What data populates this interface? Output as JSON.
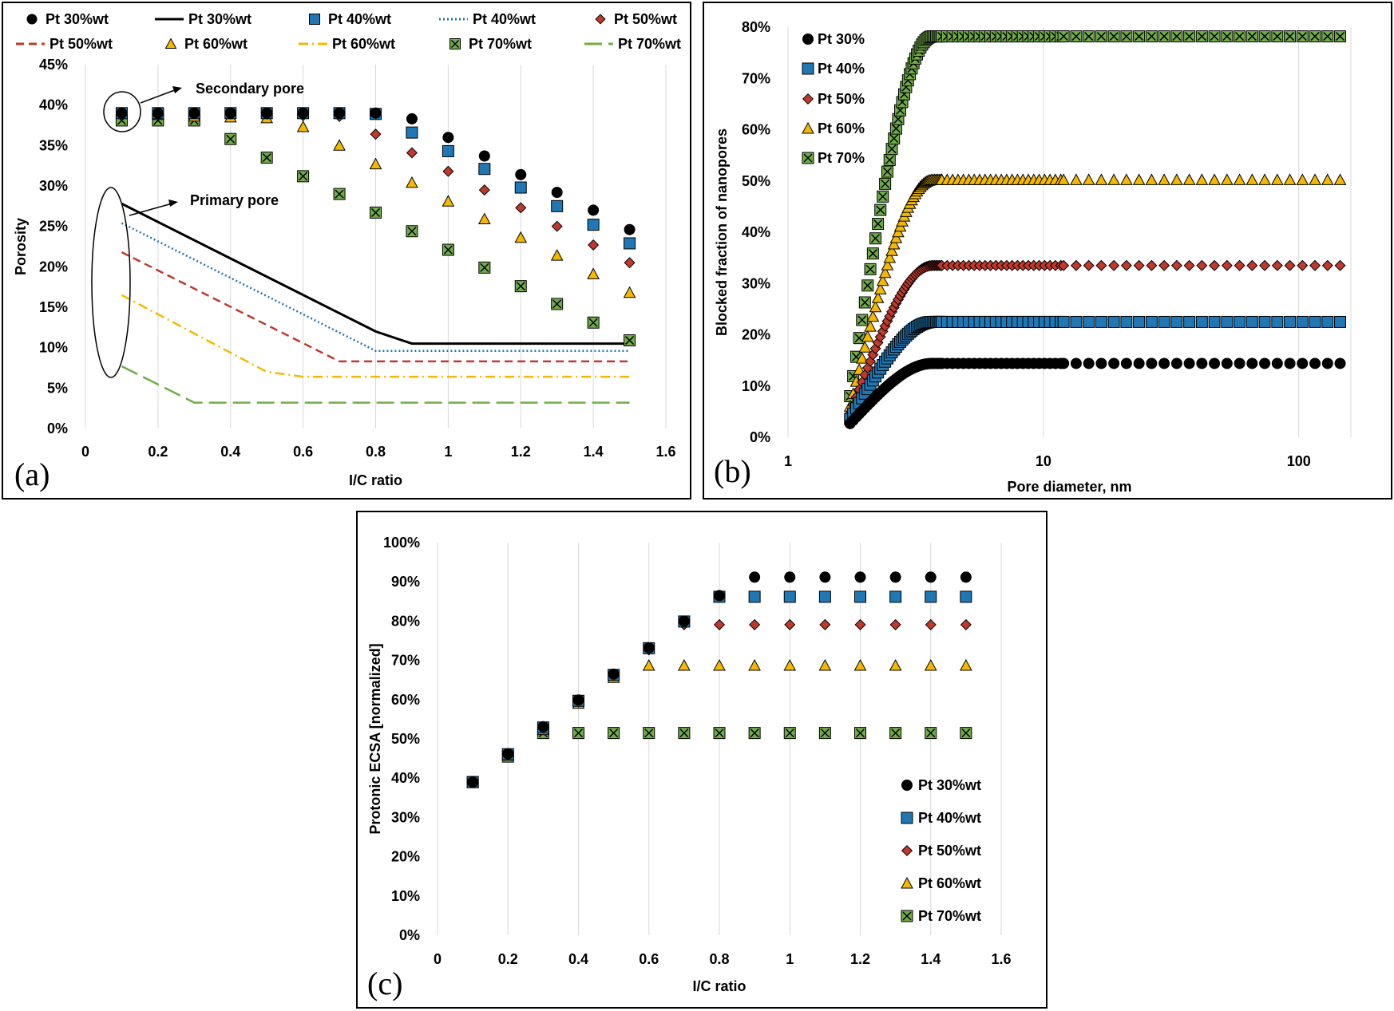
{
  "colors": {
    "pt30": "#000000",
    "pt40": "#1f77b4",
    "pt50": "#c0392b",
    "pt60": "#f5b800",
    "pt70": "#70ad47",
    "grid": "#d9d9d9"
  },
  "panels": [
    {
      "label": "(a)",
      "legend_labels": [
        "Pt 30%wt",
        "Pt 30%wt",
        "Pt 40%wt",
        "Pt 40%wt",
        "Pt 50%wt",
        "Pt 50%wt",
        "Pt 60%wt",
        "Pt 60%wt",
        "Pt 70%wt",
        "Pt 70%wt"
      ],
      "annotations": [
        "Secondary pore",
        "Primary pore"
      ]
    },
    {
      "label": "(b)",
      "legend_labels": [
        "Pt 30%",
        "Pt 40%",
        "Pt 50%",
        "Pt 60%",
        "Pt 70%"
      ]
    },
    {
      "label": "(c)",
      "legend_labels": [
        "Pt 30%wt",
        "Pt 40%wt",
        "Pt 50%wt",
        "Pt 60%wt",
        "Pt 70%wt"
      ]
    }
  ],
  "chart_data": [
    {
      "type": "scatter",
      "panel": "(a)",
      "xlabel": "I/C ratio",
      "ylabel": "Porosity",
      "xlim": [
        0,
        1.6
      ],
      "ylim": [
        0,
        0.45
      ],
      "x_ticks": [
        "0",
        "0.2",
        "0.4",
        "0.6",
        "0.8",
        "1",
        "1.2",
        "1.4",
        "1.6"
      ],
      "y_ticks": [
        "0%",
        "5%",
        "10%",
        "15%",
        "20%",
        "25%",
        "30%",
        "35%",
        "40%",
        "45%"
      ],
      "grid": "vertical",
      "legend_position": "top",
      "annotations": [
        "Secondary pore",
        "Primary pore"
      ],
      "series": [
        {
          "name": "Pt 30%wt",
          "kind": "marker",
          "marker": "circle",
          "color_key": "pt30",
          "x": [
            0.1,
            0.2,
            0.3,
            0.4,
            0.5,
            0.6,
            0.7,
            0.8,
            0.9,
            1.0,
            1.1,
            1.2,
            1.3,
            1.4,
            1.5
          ],
          "y": [
            0.39,
            0.39,
            0.39,
            0.39,
            0.39,
            0.39,
            0.39,
            0.39,
            0.383,
            0.36,
            0.337,
            0.314,
            0.292,
            0.27,
            0.246
          ]
        },
        {
          "name": "Pt 30%wt",
          "kind": "line",
          "dash": "solid",
          "color_key": "pt30",
          "x": [
            0.1,
            0.8,
            0.9,
            1.5
          ],
          "y": [
            0.278,
            0.12,
            0.105,
            0.105
          ]
        },
        {
          "name": "Pt 40%wt",
          "kind": "marker",
          "marker": "square",
          "color_key": "pt40",
          "x": [
            0.1,
            0.2,
            0.3,
            0.4,
            0.5,
            0.6,
            0.7,
            0.8,
            0.9,
            1.0,
            1.1,
            1.2,
            1.3,
            1.4,
            1.5
          ],
          "y": [
            0.39,
            0.39,
            0.39,
            0.39,
            0.39,
            0.39,
            0.39,
            0.389,
            0.366,
            0.343,
            0.321,
            0.298,
            0.275,
            0.252,
            0.229
          ]
        },
        {
          "name": "Pt 40%wt",
          "kind": "line",
          "dash": "dotted",
          "color_key": "pt40",
          "x": [
            0.1,
            0.8,
            1.5
          ],
          "y": [
            0.254,
            0.096,
            0.096
          ]
        },
        {
          "name": "Pt 50%wt",
          "kind": "marker",
          "marker": "diamond",
          "color_key": "pt50",
          "x": [
            0.1,
            0.2,
            0.3,
            0.4,
            0.5,
            0.6,
            0.7,
            0.8,
            0.9,
            1.0,
            1.1,
            1.2,
            1.3,
            1.4,
            1.5
          ],
          "y": [
            0.39,
            0.39,
            0.39,
            0.389,
            0.389,
            0.387,
            0.386,
            0.364,
            0.341,
            0.318,
            0.295,
            0.273,
            0.25,
            0.227,
            0.205
          ]
        },
        {
          "name": "Pt 50%wt",
          "kind": "line",
          "dash": "dashed",
          "color_key": "pt50",
          "x": [
            0.1,
            0.7,
            1.5
          ],
          "y": [
            0.218,
            0.083,
            0.083
          ]
        },
        {
          "name": "Pt 60%wt",
          "kind": "marker",
          "marker": "triangle",
          "color_key": "pt60",
          "x": [
            0.1,
            0.2,
            0.3,
            0.4,
            0.5,
            0.6,
            0.7,
            0.8,
            0.9,
            1.0,
            1.1,
            1.2,
            1.3,
            1.4,
            1.5
          ],
          "y": [
            0.39,
            0.388,
            0.386,
            0.385,
            0.384,
            0.373,
            0.35,
            0.327,
            0.304,
            0.281,
            0.259,
            0.236,
            0.214,
            0.191,
            0.168
          ]
        },
        {
          "name": "Pt 60%wt",
          "kind": "line",
          "dash": "dashdot",
          "color_key": "pt60",
          "x": [
            0.1,
            0.5,
            0.6,
            1.5
          ],
          "y": [
            0.165,
            0.07,
            0.064,
            0.064
          ]
        },
        {
          "name": "Pt 70%wt",
          "kind": "marker",
          "marker": "xsquare",
          "color_key": "pt70",
          "x": [
            0.1,
            0.2,
            0.3,
            0.4,
            0.5,
            0.6,
            0.7,
            0.8,
            0.9,
            1.0,
            1.1,
            1.2,
            1.3,
            1.4,
            1.5
          ],
          "y": [
            0.381,
            0.381,
            0.381,
            0.358,
            0.335,
            0.312,
            0.29,
            0.267,
            0.244,
            0.221,
            0.199,
            0.176,
            0.154,
            0.131,
            0.109
          ]
        },
        {
          "name": "Pt 70%wt",
          "kind": "line",
          "dash": "longdash",
          "color_key": "pt70",
          "x": [
            0.1,
            0.3,
            1.5
          ],
          "y": [
            0.077,
            0.032,
            0.032
          ]
        }
      ]
    },
    {
      "type": "scatter",
      "panel": "(b)",
      "xlabel": "Pore diameter, nm",
      "ylabel": "Blocked fraction of nanopores",
      "xscale": "log",
      "xlim": [
        1,
        160
      ],
      "ylim": [
        0,
        0.8
      ],
      "x_ticks": [
        "1",
        "10",
        "100"
      ],
      "y_ticks": [
        "0%",
        "10%",
        "20%",
        "30%",
        "40%",
        "50%",
        "60%",
        "70%",
        "80%"
      ],
      "grid": "vertical",
      "legend_position": "top-left",
      "curve_model": {
        "d0_nm": 1.7,
        "transition_nm": 3.7,
        "shape": "sigmoid rise then plateau"
      },
      "series": [
        {
          "name": "Pt 30%",
          "marker": "circle",
          "color_key": "pt30",
          "start": 0.02,
          "plateau": 0.144
        },
        {
          "name": "Pt 40%",
          "marker": "square",
          "color_key": "pt40",
          "start": 0.025,
          "plateau": 0.225
        },
        {
          "name": "Pt 50%",
          "marker": "diamond",
          "color_key": "pt50",
          "start": 0.03,
          "plateau": 0.335
        },
        {
          "name": "Pt 60%",
          "marker": "triangle",
          "color_key": "pt60",
          "start": 0.035,
          "plateau": 0.502
        },
        {
          "name": "Pt 70%",
          "marker": "xsquare",
          "color_key": "pt70",
          "start": 0.04,
          "plateau": 0.782
        }
      ]
    },
    {
      "type": "scatter",
      "panel": "(c)",
      "xlabel": "I/C ratio",
      "ylabel": "Protonic ECSA [normalized]",
      "xlim": [
        0,
        1.6
      ],
      "ylim": [
        0,
        1.0
      ],
      "x_ticks": [
        "0",
        "0.2",
        "0.4",
        "0.6",
        "0.8",
        "1",
        "1.2",
        "1.4",
        "1.6"
      ],
      "y_ticks": [
        "0%",
        "10%",
        "20%",
        "30%",
        "40%",
        "50%",
        "60%",
        "70%",
        "80%",
        "90%",
        "100%"
      ],
      "grid": "vertical",
      "legend_position": "bottom-right",
      "series": [
        {
          "name": "Pt 30%wt",
          "marker": "circle",
          "color_key": "pt30",
          "x": [
            0.1,
            0.2,
            0.3,
            0.4,
            0.5,
            0.6,
            0.7,
            0.8,
            0.9,
            1.0,
            1.1,
            1.2,
            1.3,
            1.4,
            1.5
          ],
          "y": [
            0.39,
            0.462,
            0.531,
            0.599,
            0.665,
            0.732,
            0.8,
            0.865,
            0.912,
            0.912,
            0.912,
            0.912,
            0.912,
            0.912,
            0.912
          ]
        },
        {
          "name": "Pt 40%wt",
          "marker": "square",
          "color_key": "pt40",
          "x": [
            0.1,
            0.2,
            0.3,
            0.4,
            0.5,
            0.6,
            0.7,
            0.8,
            0.9,
            1.0,
            1.1,
            1.2,
            1.3,
            1.4,
            1.5
          ],
          "y": [
            0.39,
            0.461,
            0.529,
            0.597,
            0.663,
            0.731,
            0.799,
            0.862,
            0.862,
            0.862,
            0.862,
            0.862,
            0.862,
            0.862,
            0.862
          ]
        },
        {
          "name": "Pt 50%wt",
          "marker": "diamond",
          "color_key": "pt50",
          "x": [
            0.1,
            0.2,
            0.3,
            0.4,
            0.5,
            0.6,
            0.7,
            0.8,
            0.9,
            1.0,
            1.1,
            1.2,
            1.3,
            1.4,
            1.5
          ],
          "y": [
            0.39,
            0.46,
            0.527,
            0.594,
            0.661,
            0.727,
            0.791,
            0.791,
            0.791,
            0.791,
            0.791,
            0.791,
            0.791,
            0.791,
            0.791
          ]
        },
        {
          "name": "Pt 60%wt",
          "marker": "triangle",
          "color_key": "pt60",
          "x": [
            0.1,
            0.2,
            0.3,
            0.4,
            0.5,
            0.6,
            0.7,
            0.8,
            0.9,
            1.0,
            1.1,
            1.2,
            1.3,
            1.4,
            1.5
          ],
          "y": [
            0.39,
            0.458,
            0.523,
            0.59,
            0.656,
            0.687,
            0.687,
            0.687,
            0.687,
            0.687,
            0.687,
            0.687,
            0.687,
            0.687,
            0.687
          ]
        },
        {
          "name": "Pt 70%wt",
          "marker": "xsquare",
          "color_key": "pt70",
          "x": [
            0.1,
            0.2,
            0.3,
            0.4,
            0.5,
            0.6,
            0.7,
            0.8,
            0.9,
            1.0,
            1.1,
            1.2,
            1.3,
            1.4,
            1.5
          ],
          "y": [
            0.39,
            0.455,
            0.515,
            0.515,
            0.515,
            0.515,
            0.515,
            0.515,
            0.515,
            0.515,
            0.515,
            0.515,
            0.515,
            0.515,
            0.515
          ]
        }
      ]
    }
  ]
}
